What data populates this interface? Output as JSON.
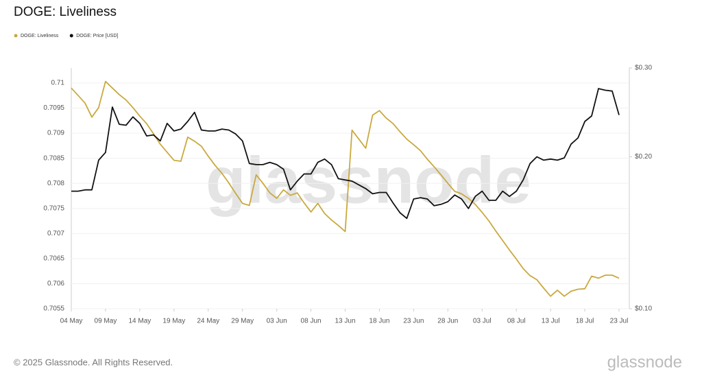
{
  "chart_data": {
    "type": "line",
    "title": "DOGE: Liveliness",
    "footer": "© 2025 Glassnode. All Rights Reserved.",
    "logo": "glassnode",
    "watermark": "glassnode",
    "categories": [
      "04 May",
      null,
      null,
      null,
      null,
      "09 May",
      null,
      null,
      null,
      null,
      "14 May",
      null,
      null,
      null,
      null,
      "19 May",
      null,
      null,
      null,
      null,
      "24 May",
      null,
      null,
      null,
      null,
      "29 May",
      null,
      null,
      null,
      null,
      "03 Jun",
      null,
      null,
      null,
      null,
      "08 Jun",
      null,
      null,
      null,
      null,
      "13 Jun",
      null,
      null,
      null,
      null,
      "18 Jun",
      null,
      null,
      null,
      null,
      "23 Jun",
      null,
      null,
      null,
      null,
      "28 Jun",
      null,
      null,
      null,
      null,
      "03 Jul",
      null,
      null,
      null,
      null,
      "08 Jul",
      null,
      null,
      null,
      null,
      "13 Jul",
      null,
      null,
      null,
      null,
      "18 Jul",
      null,
      null,
      null,
      null,
      "23 Jul"
    ],
    "series": [
      {
        "name": "DOGE: Liveliness",
        "color": "#c9a93e",
        "axis": "y",
        "values": [
          0.7099,
          0.70975,
          0.7096,
          0.70932,
          0.70951,
          0.71003,
          0.7099,
          0.70977,
          0.70966,
          0.70951,
          0.70934,
          0.70919,
          0.70899,
          0.70878,
          0.70862,
          0.70846,
          0.70844,
          0.70892,
          0.70884,
          0.70874,
          0.70854,
          0.70836,
          0.7082,
          0.70801,
          0.7078,
          0.7076,
          0.70756,
          0.70817,
          0.708,
          0.70781,
          0.7077,
          0.70787,
          0.70776,
          0.70781,
          0.70761,
          0.70743,
          0.7076,
          0.7074,
          0.70727,
          0.70716,
          0.70704,
          0.70906,
          0.70888,
          0.7087,
          0.70936,
          0.70945,
          0.7093,
          0.70919,
          0.70903,
          0.70888,
          0.70877,
          0.70865,
          0.70848,
          0.70833,
          0.70817,
          0.708,
          0.70784,
          0.70779,
          0.7077,
          0.70758,
          0.70742,
          0.70725,
          0.70705,
          0.70686,
          0.70667,
          0.70649,
          0.7063,
          0.70616,
          0.70608,
          0.70591,
          0.70575,
          0.70587,
          0.70575,
          0.70585,
          0.70589,
          0.7059,
          0.70615,
          0.70611,
          0.70617,
          0.70617,
          0.70611
        ]
      },
      {
        "name": "DOGE: Price [USD]",
        "color": "#111111",
        "axis": "y2",
        "values": [
          0.171,
          0.171,
          0.172,
          0.172,
          0.197,
          0.204,
          0.251,
          0.232,
          0.231,
          0.24,
          0.233,
          0.22,
          0.221,
          0.215,
          0.233,
          0.225,
          0.227,
          0.235,
          0.245,
          0.226,
          0.225,
          0.225,
          0.227,
          0.226,
          0.222,
          0.215,
          0.194,
          0.193,
          0.193,
          0.195,
          0.193,
          0.189,
          0.172,
          0.179,
          0.185,
          0.185,
          0.195,
          0.198,
          0.193,
          0.181,
          0.18,
          0.179,
          0.176,
          0.173,
          0.169,
          0.17,
          0.17,
          0.162,
          0.155,
          0.151,
          0.165,
          0.166,
          0.165,
          0.16,
          0.161,
          0.163,
          0.168,
          0.165,
          0.158,
          0.167,
          0.171,
          0.164,
          0.164,
          0.171,
          0.167,
          0.171,
          0.18,
          0.194,
          0.2,
          0.197,
          0.198,
          0.197,
          0.199,
          0.212,
          0.218,
          0.235,
          0.241,
          0.273,
          0.271,
          0.27,
          0.242
        ]
      }
    ],
    "ylim": [
      0.7055,
      0.7103
    ],
    "yticks": [
      0.7055,
      0.706,
      0.7065,
      0.707,
      0.7075,
      0.708,
      0.7085,
      0.709,
      0.7095,
      0.71
    ],
    "y2lim": [
      0.1,
      0.3
    ],
    "y2log": true,
    "y2ticks": [
      {
        "value": 0.1,
        "label": "$0.10"
      },
      {
        "value": 0.2,
        "label": "$0.20"
      },
      {
        "value": 0.3,
        "label": "$0.30"
      }
    ],
    "grid": true,
    "legend": "top-left"
  }
}
